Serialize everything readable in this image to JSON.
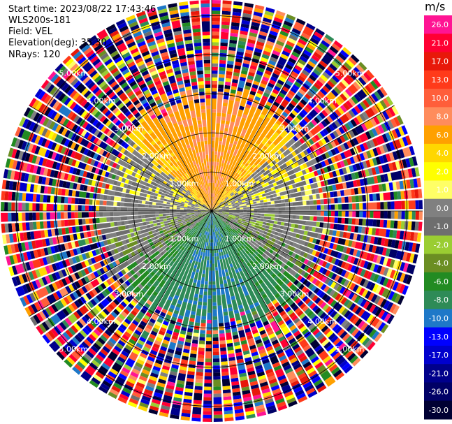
{
  "header": {
    "start_time": "Start time: 2023/08/22 17:43:46",
    "instrument": "WLS200s-181",
    "field": "Field: VEL",
    "elevation": "Elevation(deg): 35.30",
    "nrays": "NRays: 120"
  },
  "chart_data": {
    "type": "heatmap",
    "projection": "polar (PPI)",
    "title": "",
    "nrays": 120,
    "range_rings_km": [
      1,
      2,
      3,
      4,
      5
    ],
    "range_ring_labels": [
      "1.00km",
      "2.00km",
      "3.00km",
      "4.00km",
      "5.00km"
    ],
    "max_range_km": 5.4,
    "colorbar": {
      "unit": "m/s",
      "ticks": [
        "26.0",
        "21.0",
        "17.0",
        "13.0",
        "10.0",
        "8.0",
        "6.0",
        "4.0",
        "2.0",
        "1.0",
        "0.0",
        "-1.0",
        "-2.0",
        "-4.0",
        "-6.0",
        "-8.0",
        "-10.0",
        "-13.0",
        "-17.0",
        "-21.0",
        "-26.0",
        "-30.0"
      ],
      "colors": [
        "#ff1493",
        "#ff0033",
        "#e8180a",
        "#ff3a1a",
        "#ff5e3a",
        "#ff8c5c",
        "#ffa000",
        "#ffd700",
        "#ffff00",
        "#ffff66",
        "#808080",
        "#6e6e6e",
        "#9acd32",
        "#6b8e23",
        "#228b22",
        "#2e8b57",
        "#1e78c8",
        "#0000ff",
        "#0000cd",
        "#00008b",
        "#000066",
        "#000033"
      ]
    },
    "velocity_pattern": {
      "near_range_km": 3.0,
      "north_velocity": 8.0,
      "south_velocity": -8.0,
      "east_west_velocity": 0.0
    }
  }
}
